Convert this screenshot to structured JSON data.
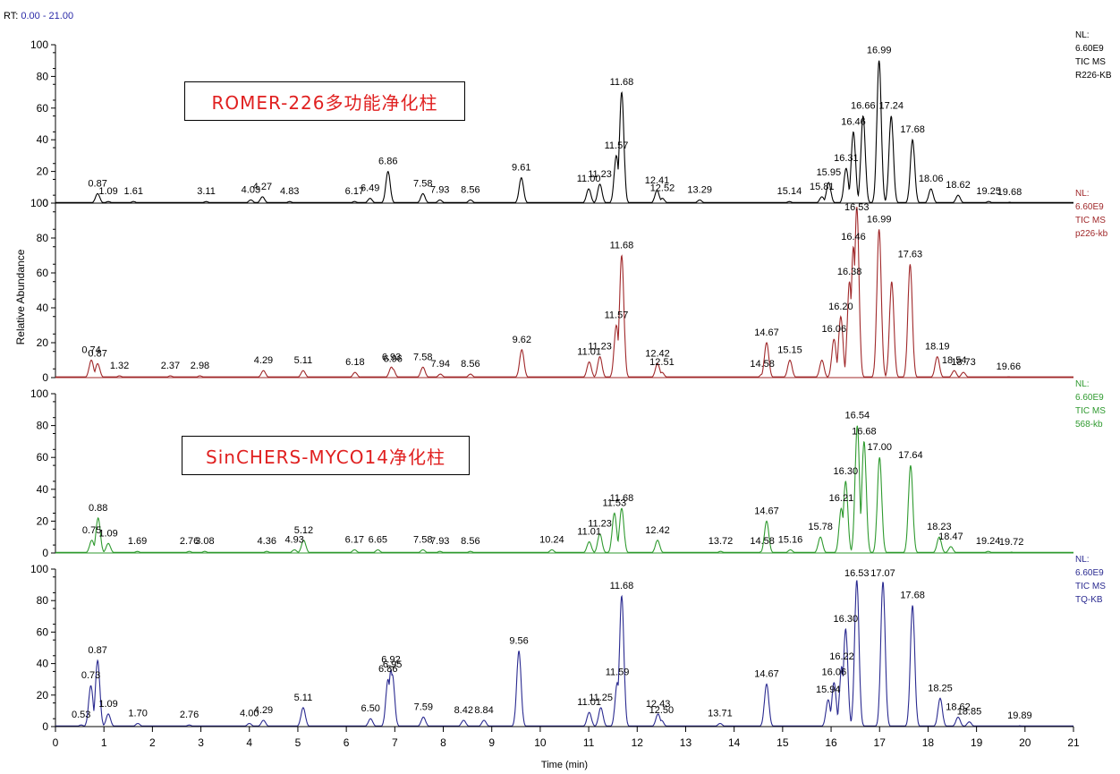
{
  "rt_label": "RT:",
  "rt_range": "0.00 - 21.00",
  "ylabel": "Relative Abundance",
  "xlabel": "Time (min)",
  "method_labels": [
    "ROMER-226多功能净化柱",
    "SinCHERS-MYCO14净化柱"
  ],
  "chart_data": [
    {
      "type": "line",
      "name": "R226-KB",
      "color": "#000000",
      "info": [
        "NL:",
        "6.60E9",
        "TIC  MS",
        "R226-KB"
      ],
      "xlim": [
        0,
        21
      ],
      "ylim": [
        0,
        100
      ],
      "yticks": [
        0,
        20,
        40,
        60,
        80,
        100
      ],
      "peaks": [
        [
          0.87,
          6
        ],
        [
          1.09,
          1
        ],
        [
          1.61,
          1
        ],
        [
          3.11,
          1
        ],
        [
          4.03,
          2
        ],
        [
          4.27,
          4
        ],
        [
          4.83,
          1
        ],
        [
          6.17,
          1
        ],
        [
          6.49,
          3
        ],
        [
          6.86,
          20
        ],
        [
          7.58,
          6
        ],
        [
          7.93,
          2
        ],
        [
          8.56,
          2
        ],
        [
          9.61,
          16
        ],
        [
          11.0,
          9
        ],
        [
          11.23,
          12
        ],
        [
          11.57,
          30
        ],
        [
          11.68,
          70
        ],
        [
          12.41,
          8
        ],
        [
          12.52,
          3
        ],
        [
          13.29,
          2
        ],
        [
          15.14,
          1
        ],
        [
          15.81,
          4
        ],
        [
          15.95,
          13
        ],
        [
          16.31,
          22
        ],
        [
          16.46,
          45
        ],
        [
          16.66,
          55
        ],
        [
          16.99,
          90
        ],
        [
          17.24,
          55
        ],
        [
          17.68,
          40
        ],
        [
          18.06,
          9
        ],
        [
          18.62,
          5
        ],
        [
          19.25,
          1
        ],
        [
          19.68,
          0.5
        ]
      ],
      "labels": [
        [
          "0.87",
          0.87,
          6
        ],
        [
          "1.09",
          1.09,
          1
        ],
        [
          "1.61",
          1.61,
          1
        ],
        [
          "3.11",
          3.11,
          1
        ],
        [
          "4.03",
          4.03,
          2
        ],
        [
          "4.27",
          4.27,
          4
        ],
        [
          "4.83",
          4.83,
          1
        ],
        [
          "6.17",
          6.17,
          1
        ],
        [
          "6.49",
          6.49,
          3
        ],
        [
          "6.86",
          6.86,
          20
        ],
        [
          "7.58",
          7.58,
          6
        ],
        [
          "7.93",
          7.93,
          2
        ],
        [
          "8.56",
          8.56,
          2
        ],
        [
          "9.61",
          9.61,
          16
        ],
        [
          "11.00",
          11.0,
          9
        ],
        [
          "11.23",
          11.23,
          12
        ],
        [
          "11.57",
          11.57,
          30
        ],
        [
          "11.68",
          11.68,
          70
        ],
        [
          "12.41",
          12.41,
          8
        ],
        [
          "12.52",
          12.52,
          3
        ],
        [
          "13.29",
          13.29,
          2
        ],
        [
          "15.14",
          15.14,
          1
        ],
        [
          "15.81",
          15.81,
          4
        ],
        [
          "15.95",
          15.95,
          13
        ],
        [
          "16.31",
          16.31,
          22
        ],
        [
          "16.46",
          16.46,
          45
        ],
        [
          "16.66",
          16.66,
          55
        ],
        [
          "16.99",
          16.99,
          90
        ],
        [
          "17.24",
          17.24,
          55
        ],
        [
          "17.68",
          17.68,
          40
        ],
        [
          "18.06",
          18.06,
          9
        ],
        [
          "18.62",
          18.62,
          5
        ],
        [
          "19.25",
          19.25,
          1
        ],
        [
          "19.68",
          19.68,
          0.5
        ]
      ]
    },
    {
      "type": "line",
      "name": "p226-kb",
      "color": "#a0282a",
      "info": [
        "NL:",
        "6.60E9",
        "TIC  MS",
        "p226-kb"
      ],
      "xlim": [
        0,
        21
      ],
      "ylim": [
        0,
        100
      ],
      "yticks": [
        0,
        20,
        40,
        60,
        80,
        100
      ],
      "peaks": [
        [
          0.74,
          10
        ],
        [
          0.87,
          8
        ],
        [
          1.32,
          1
        ],
        [
          2.37,
          1
        ],
        [
          2.98,
          1
        ],
        [
          4.29,
          4
        ],
        [
          5.11,
          4
        ],
        [
          6.18,
          3
        ],
        [
          6.96,
          5
        ],
        [
          6.93,
          6
        ],
        [
          7.58,
          6
        ],
        [
          7.94,
          2
        ],
        [
          8.56,
          2
        ],
        [
          9.62,
          16
        ],
        [
          11.01,
          9
        ],
        [
          11.23,
          12
        ],
        [
          11.57,
          30
        ],
        [
          11.68,
          70
        ],
        [
          12.42,
          8
        ],
        [
          12.51,
          3
        ],
        [
          14.58,
          2
        ],
        [
          14.67,
          20
        ],
        [
          15.15,
          10
        ],
        [
          15.81,
          10
        ],
        [
          16.06,
          22
        ],
        [
          16.2,
          35
        ],
        [
          16.38,
          55
        ],
        [
          16.46,
          75
        ],
        [
          16.53,
          98
        ],
        [
          16.99,
          85
        ],
        [
          17.25,
          55
        ],
        [
          17.63,
          65
        ],
        [
          18.19,
          12
        ],
        [
          18.54,
          4
        ],
        [
          18.73,
          3
        ],
        [
          19.66,
          0.5
        ]
      ],
      "labels": [
        [
          "0.74",
          0.74,
          10
        ],
        [
          "0.87",
          0.87,
          8
        ],
        [
          "1.32",
          1.32,
          1
        ],
        [
          "2.37",
          2.37,
          1
        ],
        [
          "2.98",
          2.98,
          1
        ],
        [
          "4.29",
          4.29,
          4
        ],
        [
          "5.11",
          5.11,
          4
        ],
        [
          "6.18",
          6.18,
          3
        ],
        [
          "6.96",
          6.96,
          5
        ],
        [
          "6.93",
          6.93,
          6
        ],
        [
          "7.58",
          7.58,
          6
        ],
        [
          "7.94",
          7.94,
          2
        ],
        [
          "8.56",
          8.56,
          2
        ],
        [
          "9.62",
          9.62,
          16
        ],
        [
          "11.01",
          11.01,
          9
        ],
        [
          "11.23",
          11.23,
          12
        ],
        [
          "11.57",
          11.57,
          30
        ],
        [
          "11.68",
          11.68,
          70
        ],
        [
          "12.42",
          12.42,
          8
        ],
        [
          "12.51",
          12.51,
          3
        ],
        [
          "14.58",
          14.58,
          2
        ],
        [
          "14.67",
          14.67,
          20
        ],
        [
          "15.15",
          15.15,
          10
        ],
        [
          "16.06",
          16.06,
          22
        ],
        [
          "16.20",
          16.2,
          35
        ],
        [
          "16.38",
          16.38,
          55
        ],
        [
          "16.46",
          16.46,
          75
        ],
        [
          "16.53",
          16.53,
          98
        ],
        [
          "16.99",
          16.99,
          85
        ],
        [
          "17.63",
          17.63,
          65
        ],
        [
          "18.19",
          18.19,
          12
        ],
        [
          "18.54",
          18.54,
          4
        ],
        [
          "18.73",
          18.73,
          3
        ],
        [
          "19.66",
          19.66,
          0.5
        ]
      ]
    },
    {
      "type": "line",
      "name": "568-kb",
      "color": "#2f9a2f",
      "info": [
        "NL:",
        "6.60E9",
        "TIC  MS",
        "568-kb"
      ],
      "xlim": [
        0,
        21
      ],
      "ylim": [
        0,
        100
      ],
      "yticks": [
        0,
        20,
        40,
        60,
        80,
        100
      ],
      "peaks": [
        [
          0.75,
          8
        ],
        [
          0.88,
          22
        ],
        [
          1.09,
          6
        ],
        [
          1.69,
          1
        ],
        [
          2.76,
          1
        ],
        [
          3.08,
          1
        ],
        [
          4.36,
          1
        ],
        [
          4.93,
          2
        ],
        [
          5.12,
          8
        ],
        [
          6.17,
          2
        ],
        [
          6.65,
          2
        ],
        [
          7.58,
          2
        ],
        [
          7.93,
          1
        ],
        [
          8.56,
          1
        ],
        [
          10.24,
          2
        ],
        [
          11.01,
          7
        ],
        [
          11.23,
          12
        ],
        [
          11.53,
          25
        ],
        [
          11.68,
          28
        ],
        [
          12.42,
          8
        ],
        [
          13.72,
          1
        ],
        [
          14.58,
          1
        ],
        [
          14.67,
          20
        ],
        [
          15.16,
          2
        ],
        [
          15.78,
          10
        ],
        [
          16.21,
          28
        ],
        [
          16.3,
          45
        ],
        [
          16.54,
          80
        ],
        [
          16.68,
          70
        ],
        [
          17.0,
          60
        ],
        [
          17.64,
          55
        ],
        [
          18.23,
          10
        ],
        [
          18.47,
          4
        ],
        [
          19.24,
          1
        ],
        [
          19.72,
          0.5
        ]
      ],
      "labels": [
        [
          "0.75",
          0.75,
          8
        ],
        [
          "0.88",
          0.88,
          22
        ],
        [
          "1.09",
          1.09,
          6
        ],
        [
          "1.69",
          1.69,
          1
        ],
        [
          "2.76",
          2.76,
          1
        ],
        [
          "3.08",
          3.08,
          1
        ],
        [
          "4.36",
          4.36,
          1
        ],
        [
          "4.93",
          4.93,
          2
        ],
        [
          "5.12",
          5.12,
          8
        ],
        [
          "6.17",
          6.17,
          2
        ],
        [
          "6.65",
          6.65,
          2
        ],
        [
          "7.58",
          7.58,
          2
        ],
        [
          "7.93",
          7.93,
          1
        ],
        [
          "8.56",
          8.56,
          1
        ],
        [
          "10.24",
          10.24,
          2
        ],
        [
          "11.01",
          11.01,
          7
        ],
        [
          "11.23",
          11.23,
          12
        ],
        [
          "11.53",
          11.53,
          25
        ],
        [
          "11.68",
          11.68,
          28
        ],
        [
          "12.42",
          12.42,
          8
        ],
        [
          "13.72",
          13.72,
          1
        ],
        [
          "14.58",
          14.58,
          1
        ],
        [
          "14.67",
          14.67,
          20
        ],
        [
          "15.16",
          15.16,
          2
        ],
        [
          "15.78",
          15.78,
          10
        ],
        [
          "16.21",
          16.21,
          28
        ],
        [
          "16.30",
          16.3,
          45
        ],
        [
          "16.54",
          16.54,
          80
        ],
        [
          "16.68",
          16.68,
          70
        ],
        [
          "17.00",
          17.0,
          60
        ],
        [
          "17.64",
          17.64,
          55
        ],
        [
          "18.23",
          18.23,
          10
        ],
        [
          "18.47",
          18.47,
          4
        ],
        [
          "19.24",
          19.24,
          1
        ],
        [
          "19.72",
          19.72,
          0.5
        ]
      ]
    },
    {
      "type": "line",
      "name": "TQ-KB",
      "color": "#2a2a90",
      "info": [
        "NL:",
        "6.60E9",
        "TIC  MS",
        "TQ-KB"
      ],
      "xlim": [
        0,
        21
      ],
      "ylim": [
        0,
        100
      ],
      "yticks": [
        0,
        20,
        40,
        60,
        80,
        100
      ],
      "peaks": [
        [
          0.53,
          1
        ],
        [
          0.73,
          26
        ],
        [
          0.87,
          42
        ],
        [
          1.09,
          8
        ],
        [
          1.7,
          2
        ],
        [
          2.76,
          1
        ],
        [
          4.0,
          2
        ],
        [
          4.29,
          4
        ],
        [
          5.11,
          12
        ],
        [
          6.5,
          5
        ],
        [
          6.86,
          30
        ],
        [
          6.92,
          36
        ],
        [
          6.95,
          33
        ],
        [
          7.59,
          6
        ],
        [
          8.42,
          4
        ],
        [
          8.84,
          4
        ],
        [
          9.56,
          48
        ],
        [
          11.01,
          9
        ],
        [
          11.25,
          12
        ],
        [
          11.59,
          28
        ],
        [
          11.68,
          83
        ],
        [
          12.43,
          8
        ],
        [
          12.5,
          4
        ],
        [
          13.71,
          2
        ],
        [
          14.67,
          27
        ],
        [
          15.94,
          17
        ],
        [
          16.06,
          28
        ],
        [
          16.22,
          38
        ],
        [
          16.3,
          62
        ],
        [
          16.53,
          93
        ],
        [
          17.07,
          92
        ],
        [
          17.68,
          77
        ],
        [
          18.25,
          18
        ],
        [
          18.62,
          6
        ],
        [
          18.85,
          3
        ],
        [
          19.89,
          0.5
        ]
      ],
      "labels": [
        [
          "0.53",
          0.53,
          1
        ],
        [
          "0.73",
          0.73,
          26
        ],
        [
          "0.87",
          0.87,
          42
        ],
        [
          "1.09",
          1.09,
          8
        ],
        [
          "1.70",
          1.7,
          2
        ],
        [
          "2.76",
          2.76,
          1
        ],
        [
          "4.00",
          4.0,
          2
        ],
        [
          "4.29",
          4.29,
          4
        ],
        [
          "5.11",
          5.11,
          12
        ],
        [
          "6.50",
          6.5,
          5
        ],
        [
          "6.86",
          6.86,
          30
        ],
        [
          "6.92",
          6.92,
          36
        ],
        [
          "6.95",
          6.95,
          33
        ],
        [
          "7.59",
          7.59,
          6
        ],
        [
          "8.42",
          8.42,
          4
        ],
        [
          "8.84",
          8.84,
          4
        ],
        [
          "9.56",
          9.56,
          48
        ],
        [
          "11.01",
          11.01,
          9
        ],
        [
          "11.25",
          11.25,
          12
        ],
        [
          "11.59",
          11.59,
          28
        ],
        [
          "11.68",
          11.68,
          83
        ],
        [
          "12.43",
          12.43,
          8
        ],
        [
          "12.50",
          12.5,
          4
        ],
        [
          "13.71",
          13.71,
          2
        ],
        [
          "14.67",
          14.67,
          27
        ],
        [
          "15.94",
          15.94,
          17
        ],
        [
          "16.06",
          16.06,
          28
        ],
        [
          "16.22",
          16.22,
          38
        ],
        [
          "16.30",
          16.3,
          62
        ],
        [
          "16.53",
          16.53,
          93
        ],
        [
          "17.07",
          17.07,
          92
        ],
        [
          "17.68",
          17.68,
          77
        ],
        [
          "18.25",
          18.25,
          18
        ],
        [
          "18.62",
          18.62,
          6
        ],
        [
          "18.85",
          18.85,
          3
        ],
        [
          "19.89",
          19.89,
          0.5
        ]
      ]
    }
  ],
  "xticks": [
    0,
    1,
    2,
    3,
    4,
    5,
    6,
    7,
    8,
    9,
    10,
    11,
    12,
    13,
    14,
    15,
    16,
    17,
    18,
    19,
    20,
    21
  ]
}
